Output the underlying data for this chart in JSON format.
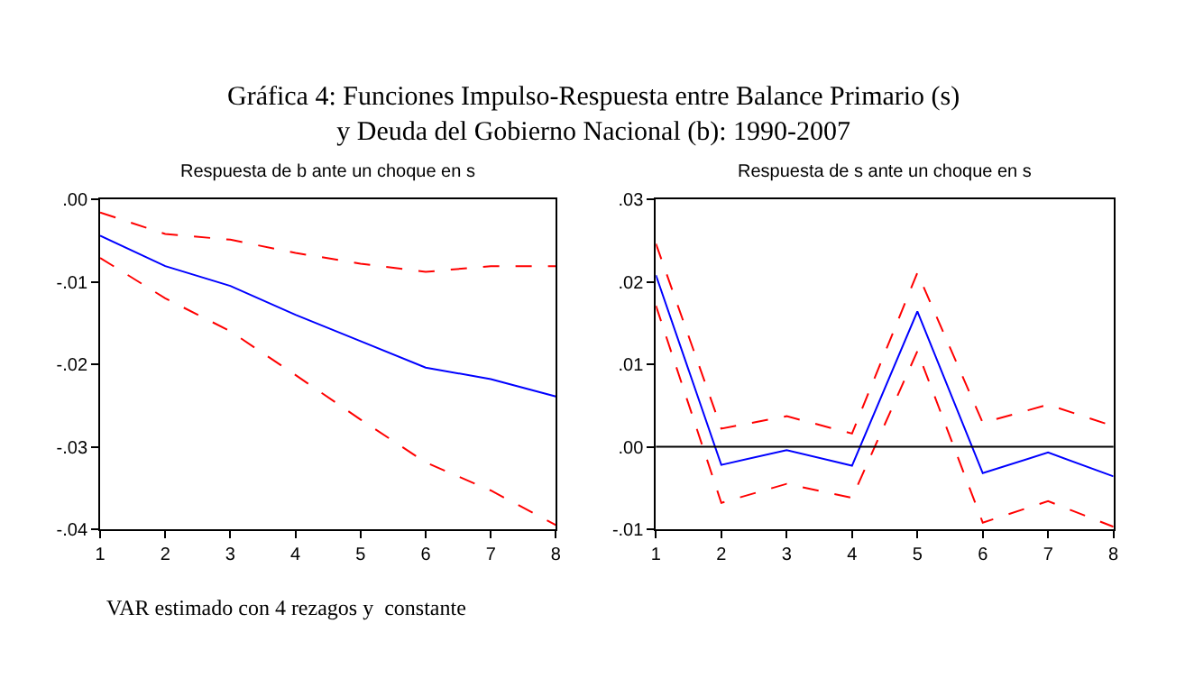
{
  "chart_data": [
    {
      "type": "line",
      "title": "Respuesta de b ante un choque en s",
      "annotations": [
        "Gráfica 4: Funciones Impulso-Respuesta entre Balance Primario (s)\ny Deuda del Gobierno Nacional (b): 1990-2007",
        "VAR estimado con 4 rezagos y  constante"
      ],
      "x": [
        1,
        2,
        3,
        4,
        5,
        6,
        7,
        8
      ],
      "series": [
        {
          "color": "#ff0000",
          "line_style": "dashed",
          "values": [
            -0.0016,
            -0.0042,
            -0.0049,
            -0.0065,
            -0.0078,
            -0.0088,
            -0.0081,
            -0.0081
          ]
        },
        {
          "color": "#0000ff",
          "line_style": "solid",
          "values": [
            -0.0044,
            -0.0081,
            -0.0105,
            -0.014,
            -0.0172,
            -0.0204,
            -0.0218,
            -0.0239
          ]
        },
        {
          "color": "#ff0000",
          "line_style": "dashed",
          "values": [
            -0.0071,
            -0.012,
            -0.016,
            -0.0213,
            -0.0267,
            -0.0319,
            -0.0353,
            -0.0395
          ]
        }
      ],
      "xlim": [
        1,
        8
      ],
      "xticks": [
        1,
        2,
        3,
        4,
        5,
        6,
        7,
        8
      ],
      "ylim": [
        -0.04,
        0
      ],
      "yticks": [
        {
          "value": -0.04,
          "label": "-.04"
        },
        {
          "value": -0.03,
          "label": "-.03"
        },
        {
          "value": -0.02,
          "label": "-.02"
        },
        {
          "value": -0.01,
          "label": "-.01"
        },
        {
          "value": 0,
          "label": ".00"
        }
      ]
    },
    {
      "type": "line",
      "title": "Respuesta de s ante un choque en s",
      "x": [
        1,
        2,
        3,
        4,
        5,
        6,
        7,
        8
      ],
      "series": [
        {
          "color": "#ff0000",
          "line_style": "dashed",
          "values": [
            0.0246,
            0.0022,
            0.0037,
            0.0016,
            0.0211,
            0.0029,
            0.0051,
            0.0025
          ]
        },
        {
          "color": "#0000ff",
          "line_style": "solid",
          "values": [
            0.0208,
            -0.0022,
            -0.0004,
            -0.0023,
            0.0164,
            -0.0032,
            -0.0007,
            -0.0036
          ]
        },
        {
          "color": "#ff0000",
          "line_style": "dashed",
          "values": [
            0.0171,
            -0.0068,
            -0.0045,
            -0.0062,
            0.0116,
            -0.0092,
            -0.0066,
            -0.0097
          ]
        }
      ],
      "ref_lines": [
        {
          "axis": "y",
          "value": 0,
          "color": "#000000"
        }
      ],
      "xlim": [
        1,
        8
      ],
      "xticks": [
        1,
        2,
        3,
        4,
        5,
        6,
        7,
        8
      ],
      "ylim": [
        -0.01,
        0.03
      ],
      "yticks": [
        {
          "value": -0.01,
          "label": "-.01"
        },
        {
          "value": 0,
          "label": ".00"
        },
        {
          "value": 0.01,
          "label": ".01"
        },
        {
          "value": 0.02,
          "label": ".02"
        },
        {
          "value": 0.03,
          "label": ".03"
        }
      ]
    }
  ]
}
